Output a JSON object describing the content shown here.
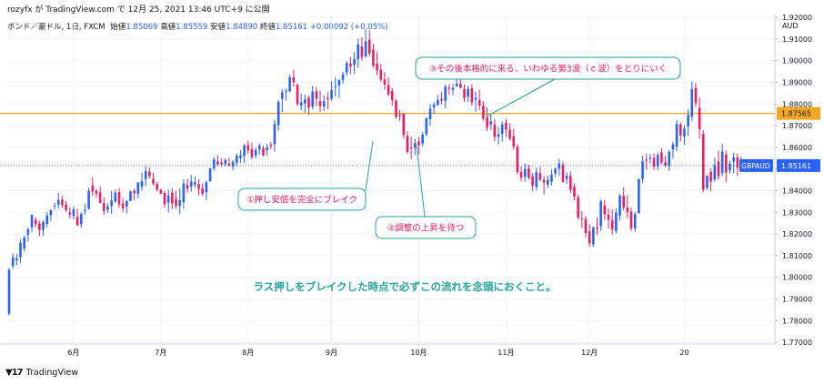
{
  "header": {
    "text": "rozyfx が TradingView.com で 12月 25, 2021 13:46 UTC+9 に公開"
  },
  "ohlc": {
    "symbol": "ポンド／豪ドル, 1日, FXCM",
    "open_label": "始値",
    "open": "1.85069",
    "high_label": "高値",
    "high": "1.85559",
    "low_label": "安値",
    "low": "1.84890",
    "close_label": "終値",
    "close": "1.85161",
    "change": "+0.00092 (+0.05%)"
  },
  "footer": {
    "brand": "TradingView"
  },
  "chart_data": {
    "type": "candlestick",
    "symbol": "GBPAUD",
    "currency": "AUD",
    "timeframe": "1日",
    "y_ticks": [
      "1.92000",
      "1.91000",
      "1.90000",
      "1.89000",
      "1.88000",
      "1.87000",
      "1.86000",
      "1.85000",
      "1.84000",
      "1.83000",
      "1.82000",
      "1.81000",
      "1.80000",
      "1.79000",
      "1.78000",
      "1.77000"
    ],
    "ylim": [
      1.77,
      1.92
    ],
    "x_ticks": [
      "6月",
      "7月",
      "8月",
      "9月",
      "10月",
      "11月",
      "12月",
      "20"
    ],
    "last_price_label": "1.85161",
    "last_price": 1.85161,
    "horizontal_line": {
      "label": "1.87565",
      "value": 1.87565,
      "color": "#f5a623"
    },
    "colors": {
      "up": "#2962ff",
      "down": "#e91e63"
    },
    "annotations": {
      "a1": "①押し安値を完全にブレイク",
      "a2": "②調整の上昇を待つ",
      "a3": "③その後本格的に来る、いわゆる第3波（ｃ波）をとりにいく",
      "main": "ラス押しをブレイクした時点で必ずこの流れを念頭におくこと。"
    },
    "ohlc": [
      [
        1.7832,
        1.8042,
        1.7824,
        1.8035
      ],
      [
        1.8052,
        1.811,
        1.8039,
        1.8093
      ],
      [
        1.8078,
        1.8109,
        1.8055,
        1.8088
      ],
      [
        1.8093,
        1.8174,
        1.8067,
        1.8159
      ],
      [
        1.8133,
        1.8193,
        1.812,
        1.8183
      ],
      [
        1.8197,
        1.8229,
        1.8166,
        1.8221
      ],
      [
        1.823,
        1.829,
        1.8207,
        1.8289
      ],
      [
        1.8265,
        1.8277,
        1.8231,
        1.8245
      ],
      [
        1.8248,
        1.8262,
        1.819,
        1.8219
      ],
      [
        1.8219,
        1.8264,
        1.8192,
        1.8255
      ],
      [
        1.8247,
        1.8301,
        1.8231,
        1.8286
      ],
      [
        1.8287,
        1.8314,
        1.826,
        1.831
      ],
      [
        1.833,
        1.8344,
        1.8313,
        1.8331
      ],
      [
        1.8336,
        1.839,
        1.8316,
        1.8357
      ],
      [
        1.8359,
        1.8377,
        1.8322,
        1.8333
      ],
      [
        1.8335,
        1.8353,
        1.8302,
        1.8311
      ],
      [
        1.8299,
        1.8324,
        1.8272,
        1.829
      ],
      [
        1.8284,
        1.8327,
        1.8267,
        1.8314
      ],
      [
        1.8279,
        1.8315,
        1.8236,
        1.8241
      ],
      [
        1.8245,
        1.83,
        1.8228,
        1.8292
      ],
      [
        1.8306,
        1.834,
        1.8289,
        1.8311
      ],
      [
        1.8316,
        1.8413,
        1.8312,
        1.8399
      ],
      [
        1.8424,
        1.8462,
        1.8376,
        1.8396
      ],
      [
        1.8398,
        1.8409,
        1.8368,
        1.8386
      ],
      [
        1.8392,
        1.842,
        1.834,
        1.8344
      ],
      [
        1.8343,
        1.8369,
        1.8288,
        1.8306
      ],
      [
        1.8312,
        1.8342,
        1.8296,
        1.8326
      ],
      [
        1.8329,
        1.8399,
        1.8293,
        1.8354
      ],
      [
        1.835,
        1.8405,
        1.8344,
        1.8391
      ],
      [
        1.8394,
        1.8411,
        1.8321,
        1.8337
      ],
      [
        1.8341,
        1.8366,
        1.8301,
        1.8318
      ],
      [
        1.8327,
        1.8356,
        1.8295,
        1.8351
      ],
      [
        1.8353,
        1.84,
        1.8351,
        1.8397
      ],
      [
        1.8399,
        1.8409,
        1.8356,
        1.8388
      ],
      [
        1.8386,
        1.8439,
        1.8365,
        1.8438
      ],
      [
        1.8419,
        1.8484,
        1.8401,
        1.8443
      ],
      [
        1.8454,
        1.8514,
        1.8421,
        1.8491
      ],
      [
        1.8487,
        1.8507,
        1.8456,
        1.8467
      ],
      [
        1.8455,
        1.8482,
        1.8425,
        1.8432
      ],
      [
        1.8431,
        1.8441,
        1.8396,
        1.8405
      ],
      [
        1.8403,
        1.841,
        1.8384,
        1.8387
      ],
      [
        1.839,
        1.8398,
        1.8321,
        1.8338
      ],
      [
        1.8345,
        1.8405,
        1.8301,
        1.8378
      ],
      [
        1.8391,
        1.8413,
        1.8315,
        1.8342
      ],
      [
        1.836,
        1.8399,
        1.8317,
        1.833
      ],
      [
        1.833,
        1.8411,
        1.8291,
        1.8356
      ],
      [
        1.8347,
        1.8452,
        1.8317,
        1.8433
      ],
      [
        1.8426,
        1.8455,
        1.8389,
        1.8409
      ],
      [
        1.8418,
        1.8472,
        1.8395,
        1.8442
      ],
      [
        1.8428,
        1.8466,
        1.8414,
        1.8439
      ],
      [
        1.843,
        1.8453,
        1.8379,
        1.8409
      ],
      [
        1.841,
        1.8434,
        1.8375,
        1.8386
      ],
      [
        1.8392,
        1.8446,
        1.8356,
        1.8439
      ],
      [
        1.8444,
        1.8504,
        1.844,
        1.8503
      ],
      [
        1.8503,
        1.8555,
        1.8493,
        1.8544
      ],
      [
        1.8534,
        1.8563,
        1.8515,
        1.8522
      ],
      [
        1.853,
        1.8548,
        1.851,
        1.8522
      ],
      [
        1.8524,
        1.855,
        1.8513,
        1.8542
      ],
      [
        1.8525,
        1.8554,
        1.8513,
        1.8515
      ],
      [
        1.8511,
        1.8542,
        1.8495,
        1.8532
      ],
      [
        1.853,
        1.8572,
        1.8513,
        1.8562
      ],
      [
        1.855,
        1.8588,
        1.8528,
        1.8564
      ],
      [
        1.856,
        1.8616,
        1.8529,
        1.8609
      ],
      [
        1.8611,
        1.8631,
        1.857,
        1.8587
      ],
      [
        1.8592,
        1.8623,
        1.8546,
        1.8554
      ],
      [
        1.8563,
        1.8599,
        1.8548,
        1.8587
      ],
      [
        1.8591,
        1.8617,
        1.8566,
        1.8609
      ],
      [
        1.8594,
        1.8607,
        1.8558,
        1.8564
      ],
      [
        1.8587,
        1.8616,
        1.8563,
        1.8599
      ],
      [
        1.8612,
        1.8625,
        1.859,
        1.8606
      ],
      [
        1.8615,
        1.8728,
        1.8581,
        1.8708
      ],
      [
        1.8703,
        1.8818,
        1.8676,
        1.8811
      ],
      [
        1.8824,
        1.8869,
        1.8763,
        1.8854
      ],
      [
        1.8858,
        1.887,
        1.8816,
        1.8862
      ],
      [
        1.8858,
        1.8935,
        1.8856,
        1.8923
      ],
      [
        1.8923,
        1.8958,
        1.888,
        1.8901
      ],
      [
        1.8889,
        1.8896,
        1.8791,
        1.8799
      ],
      [
        1.8793,
        1.8848,
        1.8772,
        1.8808
      ],
      [
        1.8803,
        1.8844,
        1.8759,
        1.8821
      ],
      [
        1.8829,
        1.884,
        1.875,
        1.8784
      ],
      [
        1.8788,
        1.8883,
        1.8777,
        1.8858
      ],
      [
        1.8859,
        1.8879,
        1.8791,
        1.8825
      ],
      [
        1.8813,
        1.8862,
        1.8763,
        1.879
      ],
      [
        1.8789,
        1.884,
        1.8767,
        1.8813
      ],
      [
        1.8827,
        1.8855,
        1.8775,
        1.8824
      ],
      [
        1.8825,
        1.8906,
        1.8815,
        1.8865
      ],
      [
        1.8881,
        1.8925,
        1.8835,
        1.8883
      ],
      [
        1.8886,
        1.8914,
        1.8829,
        1.8911
      ],
      [
        1.8912,
        1.8949,
        1.8895,
        1.8936
      ],
      [
        1.8946,
        1.8998,
        1.893,
        1.8989
      ],
      [
        1.8989,
        1.9018,
        1.8939,
        1.8973
      ],
      [
        1.898,
        1.904,
        1.8939,
        1.9007
      ],
      [
        1.9006,
        1.91,
        1.8967,
        1.9075
      ],
      [
        1.9065,
        1.9108,
        1.9001,
        1.9017
      ],
      [
        1.9021,
        1.9144,
        1.9013,
        1.909
      ],
      [
        1.9097,
        1.9141,
        1.9019,
        1.9033
      ],
      [
        1.9051,
        1.9078,
        1.8967,
        1.8977
      ],
      [
        1.8986,
        1.9043,
        1.8934,
        1.8954
      ],
      [
        1.8958,
        1.8985,
        1.8902,
        1.8913
      ],
      [
        1.8914,
        1.8947,
        1.8866,
        1.889
      ],
      [
        1.8888,
        1.8924,
        1.8837,
        1.8844
      ],
      [
        1.886,
        1.8873,
        1.8793,
        1.8817
      ],
      [
        1.8815,
        1.8824,
        1.8732,
        1.8741
      ],
      [
        1.875,
        1.8773,
        1.8722,
        1.8749
      ],
      [
        1.8754,
        1.8758,
        1.864,
        1.8657
      ],
      [
        1.8654,
        1.8674,
        1.8569,
        1.8579
      ],
      [
        1.8599,
        1.8649,
        1.8545,
        1.8597
      ],
      [
        1.8598,
        1.8639,
        1.8564,
        1.862
      ],
      [
        1.8627,
        1.8646,
        1.8566,
        1.861
      ],
      [
        1.8618,
        1.867,
        1.8604,
        1.8659
      ],
      [
        1.866,
        1.8739,
        1.865,
        1.8734
      ],
      [
        1.873,
        1.8799,
        1.87,
        1.8779
      ],
      [
        1.8785,
        1.881,
        1.8754,
        1.8797
      ],
      [
        1.8795,
        1.8841,
        1.8793,
        1.8818
      ],
      [
        1.8823,
        1.8856,
        1.8798,
        1.8816
      ],
      [
        1.8815,
        1.889,
        1.878,
        1.888
      ],
      [
        1.8876,
        1.8891,
        1.8842,
        1.8871
      ],
      [
        1.8866,
        1.8893,
        1.884,
        1.8875
      ],
      [
        1.8881,
        1.8948,
        1.888,
        1.8893
      ],
      [
        1.8893,
        1.893,
        1.8871,
        1.8875
      ],
      [
        1.8869,
        1.889,
        1.881,
        1.8828
      ],
      [
        1.8834,
        1.8885,
        1.8809,
        1.887
      ],
      [
        1.8873,
        1.8892,
        1.8792,
        1.8807
      ],
      [
        1.882,
        1.8857,
        1.8765,
        1.8829
      ],
      [
        1.8819,
        1.8866,
        1.8772,
        1.8793
      ],
      [
        1.8792,
        1.8812,
        1.8723,
        1.8733
      ],
      [
        1.8738,
        1.8785,
        1.8674,
        1.8691
      ],
      [
        1.8706,
        1.8753,
        1.868,
        1.872
      ],
      [
        1.8704,
        1.873,
        1.8627,
        1.8649
      ],
      [
        1.8649,
        1.8693,
        1.8613,
        1.866
      ],
      [
        1.8662,
        1.8721,
        1.8626,
        1.8706
      ],
      [
        1.8713,
        1.873,
        1.8647,
        1.8683
      ],
      [
        1.8681,
        1.871,
        1.8631,
        1.864
      ],
      [
        1.8652,
        1.8685,
        1.859,
        1.8603
      ],
      [
        1.8603,
        1.8614,
        1.8475,
        1.8486
      ],
      [
        1.8487,
        1.8511,
        1.8443,
        1.846
      ],
      [
        1.8463,
        1.8525,
        1.8441,
        1.85
      ],
      [
        1.8502,
        1.852,
        1.845,
        1.8461
      ],
      [
        1.8465,
        1.8482,
        1.8398,
        1.8424
      ],
      [
        1.8418,
        1.8506,
        1.8402,
        1.8486
      ],
      [
        1.8481,
        1.851,
        1.8442,
        1.845
      ],
      [
        1.845,
        1.8468,
        1.8382,
        1.8437
      ],
      [
        1.8427,
        1.8469,
        1.8413,
        1.845
      ],
      [
        1.8441,
        1.8498,
        1.8424,
        1.8474
      ],
      [
        1.848,
        1.8508,
        1.8463,
        1.8501
      ],
      [
        1.8502,
        1.8546,
        1.8467,
        1.8526
      ],
      [
        1.8519,
        1.8534,
        1.8436,
        1.8441
      ],
      [
        1.8454,
        1.8486,
        1.8431,
        1.8469
      ],
      [
        1.8467,
        1.8489,
        1.839,
        1.8404
      ],
      [
        1.8417,
        1.8434,
        1.8355,
        1.8373
      ],
      [
        1.837,
        1.8382,
        1.8266,
        1.8277
      ],
      [
        1.8273,
        1.8306,
        1.8228,
        1.8268
      ],
      [
        1.8269,
        1.8283,
        1.8185,
        1.8205
      ],
      [
        1.8212,
        1.8245,
        1.8141,
        1.8156
      ],
      [
        1.8152,
        1.8235,
        1.814,
        1.8229
      ],
      [
        1.823,
        1.8277,
        1.8196,
        1.8228
      ],
      [
        1.8236,
        1.8359,
        1.8214,
        1.8351
      ],
      [
        1.8332,
        1.8357,
        1.8266,
        1.8291
      ],
      [
        1.829,
        1.8318,
        1.8225,
        1.8266
      ],
      [
        1.8263,
        1.8314,
        1.8197,
        1.8222
      ],
      [
        1.8214,
        1.8317,
        1.8203,
        1.8299
      ],
      [
        1.8285,
        1.8384,
        1.8263,
        1.8377
      ],
      [
        1.8376,
        1.8416,
        1.8308,
        1.8323
      ],
      [
        1.8322,
        1.8379,
        1.8273,
        1.8301
      ],
      [
        1.8303,
        1.8322,
        1.8214,
        1.8227
      ],
      [
        1.8226,
        1.8303,
        1.821,
        1.8292
      ],
      [
        1.8297,
        1.8456,
        1.8293,
        1.8453
      ],
      [
        1.8454,
        1.856,
        1.8435,
        1.8535
      ],
      [
        1.8543,
        1.8571,
        1.8497,
        1.8541
      ],
      [
        1.8547,
        1.8571,
        1.8525,
        1.8551
      ],
      [
        1.8551,
        1.8572,
        1.8495,
        1.8512
      ],
      [
        1.8513,
        1.8576,
        1.8496,
        1.8565
      ],
      [
        1.8577,
        1.8596,
        1.8521,
        1.853
      ],
      [
        1.853,
        1.8561,
        1.8508,
        1.8516
      ],
      [
        1.8513,
        1.8586,
        1.8491,
        1.858
      ],
      [
        1.859,
        1.8626,
        1.8548,
        1.8613
      ],
      [
        1.8603,
        1.8727,
        1.8582,
        1.8708
      ],
      [
        1.8706,
        1.8716,
        1.8628,
        1.8655
      ],
      [
        1.8649,
        1.8702,
        1.8612,
        1.8686
      ],
      [
        1.8697,
        1.8774,
        1.8653,
        1.8749
      ],
      [
        1.8741,
        1.8905,
        1.8721,
        1.8869
      ],
      [
        1.8874,
        1.8897,
        1.8788,
        1.8804
      ],
      [
        1.8782,
        1.8829,
        1.864,
        1.8684
      ],
      [
        1.8662,
        1.8678,
        1.8392,
        1.8404
      ],
      [
        1.8413,
        1.8471,
        1.8403,
        1.8468
      ],
      [
        1.8486,
        1.8504,
        1.8398,
        1.8442
      ],
      [
        1.8452,
        1.8553,
        1.8442,
        1.8519
      ],
      [
        1.8534,
        1.8586,
        1.8451,
        1.8467
      ],
      [
        1.848,
        1.8617,
        1.8468,
        1.8581
      ],
      [
        1.8566,
        1.8585,
        1.8438,
        1.8484
      ],
      [
        1.8494,
        1.8537,
        1.8479,
        1.8525
      ],
      [
        1.8534,
        1.8575,
        1.848,
        1.8554
      ],
      [
        1.8554,
        1.8572,
        1.8469,
        1.8506
      ],
      [
        1.8507,
        1.8556,
        1.8489,
        1.8516
      ]
    ]
  }
}
